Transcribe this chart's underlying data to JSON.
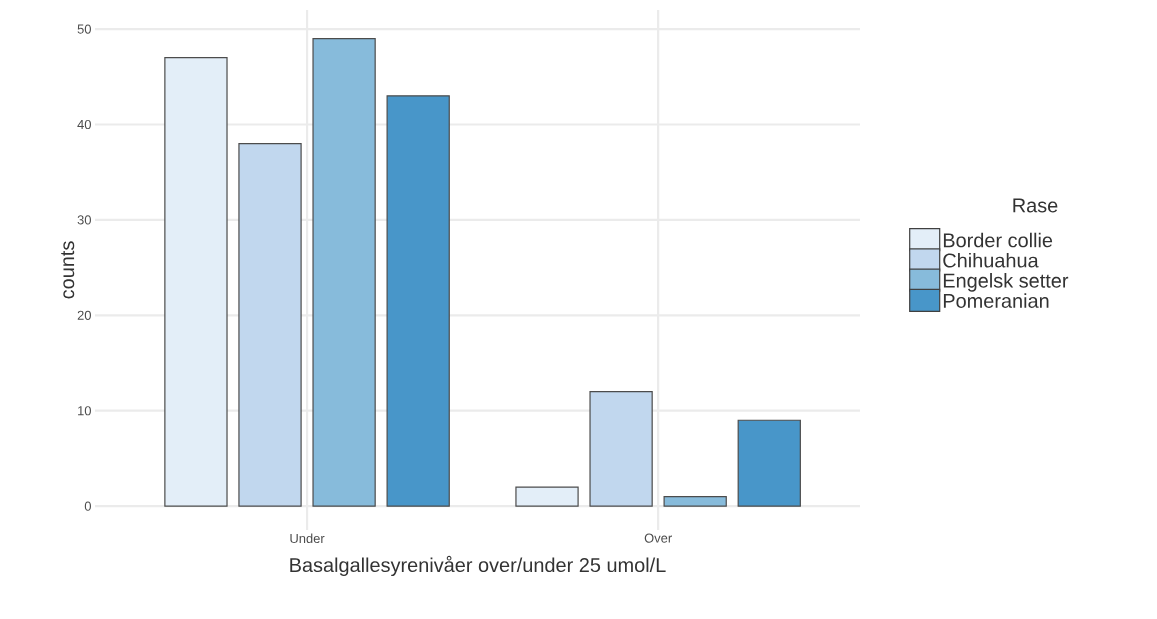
{
  "chart_data": {
    "type": "bar",
    "xlabel": "Basalgallesyrenivåer over/under 25 umol/L",
    "ylabel": "counts",
    "legend_title": "Rase",
    "categories": [
      "Under",
      "Over"
    ],
    "series": [
      {
        "name": "Border collie",
        "color": "#e3eef8",
        "values": [
          47,
          2
        ]
      },
      {
        "name": "Chihuahua",
        "color": "#c1d7ee",
        "values": [
          38,
          12
        ]
      },
      {
        "name": "Engelsk setter",
        "color": "#87bbdb",
        "values": [
          49,
          1
        ]
      },
      {
        "name": "Pomeranian",
        "color": "#4896c9",
        "values": [
          43,
          9
        ]
      }
    ],
    "ylim": [
      -2.5,
      52
    ],
    "yticks": [
      0,
      10,
      20,
      30,
      40,
      50
    ],
    "grid": true,
    "legend": "right"
  }
}
